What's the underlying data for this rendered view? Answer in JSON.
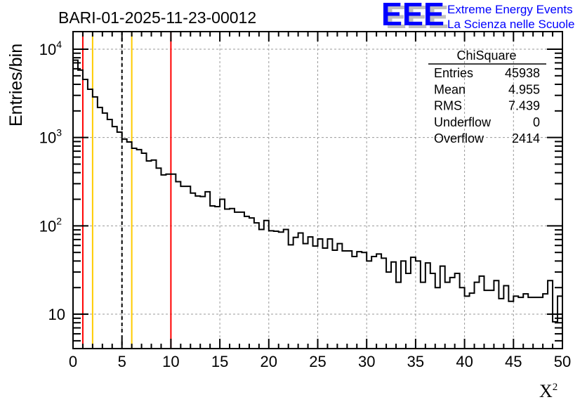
{
  "header": {
    "run_title": "BARI-01-2025-11-23-00012",
    "logo_mark": "EEE",
    "logo_line1": "Extreme Energy Events",
    "logo_line2": "La Scienza nelle Scuole"
  },
  "colors": {
    "red": "#ff0000",
    "orange": "#ffcc00",
    "line": "#000000",
    "grid": "#999999",
    "logo": "#0000ff",
    "logo_shadow": "#c0c0c0"
  },
  "chart_data": {
    "type": "histogram",
    "title": "BARI-01-2025-11-23-00012",
    "xlabel": "X",
    "xlabel_sup": "2",
    "ylabel": "Entries/bin",
    "xlim": [
      0,
      50
    ],
    "ylim": [
      4.08,
      15800
    ],
    "yscale": "log",
    "grid": true,
    "bin_width": 0.5,
    "x_ticks": [
      "0",
      "5",
      "10",
      "15",
      "20",
      "25",
      "30",
      "35",
      "40",
      "45",
      "50"
    ],
    "y_ticks": [
      {
        "base": "10",
        "exp": "",
        "value": 10
      },
      {
        "base": "10",
        "exp": "2",
        "value": 100
      },
      {
        "base": "10",
        "exp": "3",
        "value": 1000
      },
      {
        "base": "10",
        "exp": "4",
        "value": 10000
      }
    ],
    "values": [
      7500,
      5800,
      4550,
      3520,
      2880,
      2190,
      1890,
      1600,
      1330,
      1150,
      960,
      890,
      755,
      730,
      665,
      543,
      555,
      450,
      377,
      385,
      385,
      316,
      280,
      280,
      235,
      218,
      215,
      243,
      168,
      165,
      200,
      155,
      157,
      143,
      143,
      128,
      123,
      108,
      91,
      115,
      88,
      87,
      85,
      91,
      61,
      74,
      83,
      63,
      75,
      59,
      71,
      56,
      71,
      53,
      63,
      52,
      52,
      45,
      51,
      50,
      40,
      45,
      48,
      43,
      30,
      39,
      23,
      40,
      29,
      44,
      40,
      23,
      38,
      29,
      20,
      35,
      23,
      26,
      29,
      20,
      16,
      17.3,
      23,
      27,
      18.6,
      18.6,
      24,
      15,
      21,
      14,
      16,
      15.5,
      17,
      15.5,
      15.5,
      15.5,
      17,
      24,
      8.2,
      16
    ],
    "markers": [
      {
        "x": 1,
        "color": "#ff0000",
        "style": "solid"
      },
      {
        "x": 2,
        "color": "#ffcc00",
        "style": "solid"
      },
      {
        "x": 5,
        "color": "#000000",
        "style": "dashed"
      },
      {
        "x": 6,
        "color": "#ffcc00",
        "style": "solid"
      },
      {
        "x": 10,
        "color": "#ff0000",
        "style": "solid"
      }
    ],
    "stats_box": {
      "title": "ChiSquare",
      "position": "top-right",
      "rows": [
        {
          "label": "Entries",
          "value": "45938"
        },
        {
          "label": "Mean",
          "value": "4.955"
        },
        {
          "label": "RMS",
          "value": "7.439"
        },
        {
          "label": "Underflow",
          "value": "0"
        },
        {
          "label": "Overflow",
          "value": "2414"
        }
      ]
    }
  }
}
